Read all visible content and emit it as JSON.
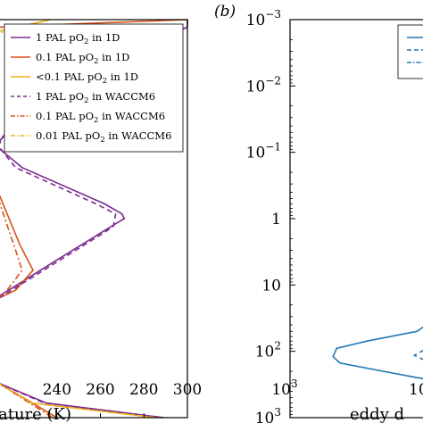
{
  "chart_data": [
    {
      "panel": "a",
      "type": "line",
      "panel_label": "",
      "xlabel": "ature (K)",
      "ylabel": "",
      "xticks": [
        240,
        260,
        280,
        300
      ],
      "xlim": [
        213,
        300
      ],
      "ylim": [
        0.001,
        1000
      ],
      "yscale": "log",
      "yinverted": true,
      "legend_position": "top-right",
      "series": [
        {
          "name": "1 PAL pO₂ in 1D",
          "color": "#7b2a8f",
          "dash": "solid",
          "x": [
            300,
            300,
            264,
            224,
            212,
            224,
            262,
            270,
            271,
            266,
            241,
            213,
            213,
            235,
            289
          ],
          "y": [
            0.001,
            0.0013,
            0.004,
            0.024,
            0.08,
            0.17,
            0.6,
            0.85,
            1,
            1.25,
            4,
            15,
            300,
            600,
            1000
          ]
        },
        {
          "name": "0.1 PAL pO₂ in 1D",
          "color": "#d95319",
          "dash": "solid",
          "x": [
            300,
            236,
            213,
            213,
            223,
            229,
            221,
            213,
            213,
            240
          ],
          "y": [
            0.001,
            0.0012,
            0.0013,
            0.4,
            2.5,
            6,
            12,
            16,
            300,
            1000
          ]
        },
        {
          "name": "<0.1 PAL pO₂ in 1D",
          "color": "#edb120",
          "dash": "solid",
          "x": [
            237,
            213,
            213,
            228,
            286
          ],
          "y": [
            0.001,
            0.0015,
            300,
            600,
            1000
          ]
        },
        {
          "name": "1 PAL pO₂ in WACCM6",
          "color": "#7b2a8f",
          "dash": "dashed",
          "x": [
            300,
            300,
            262,
            222,
            213,
            221,
            258,
            267,
            266,
            262,
            240,
            213,
            213,
            234,
            289
          ],
          "y": [
            0.001,
            0.0013,
            0.004,
            0.024,
            0.08,
            0.17,
            0.6,
            0.85,
            1.3,
            1.6,
            4.5,
            16,
            300,
            600,
            1000
          ]
        },
        {
          "name": "0.1 PAL pO₂ in WACCM6",
          "color": "#d95319",
          "dash": "dashdot",
          "x": [
            213,
            221,
            224,
            218,
            213,
            213,
            238
          ],
          "y": [
            0.5,
            3,
            6,
            11,
            16,
            300,
            1000
          ]
        },
        {
          "name": "0.01 PAL pO₂ in WACCM6",
          "color": "#edb120",
          "dash": "dashdot",
          "x": [
            237,
            213,
            213,
            228,
            286
          ],
          "y": [
            0.001,
            0.0016,
            300,
            600,
            1000
          ]
        }
      ]
    },
    {
      "panel": "b",
      "type": "line",
      "panel_label": "(b)",
      "xlabel": "eddy d",
      "ylabel": "",
      "xscale": "log",
      "yscale": "log",
      "yinverted": true,
      "xlim": [
        1000,
        100000
      ],
      "ylim": [
        0.001,
        1000
      ],
      "xtick_labels": [
        "10",
        "3",
        "10"
      ],
      "ytick_labels": [
        {
          "base": "10",
          "exp": "−3"
        },
        {
          "base": "10",
          "exp": "−2"
        },
        {
          "base": "10",
          "exp": "−1"
        },
        {
          "base": "1",
          "exp": ""
        },
        {
          "base": "10",
          "exp": ""
        },
        {
          "base": "10",
          "exp": "2"
        },
        {
          "base": "10",
          "exp": "3"
        }
      ],
      "legend_position": "top-right",
      "series": [
        {
          "color": "#1f77b4",
          "dash": "solid",
          "x": [
            100000,
            60000,
            12000,
            4500,
            4000,
            5000,
            20000,
            60000,
            100000
          ],
          "y": [
            35,
            50,
            70,
            90,
            120,
            150,
            200,
            250,
            270
          ]
        },
        {
          "color": "#1f77b4",
          "dash": "dashed",
          "x": [
            100000,
            70000,
            55000,
            70000,
            100000
          ],
          "y": [
            80,
            100,
            115,
            130,
            150
          ]
        }
      ]
    }
  ],
  "legend": {
    "entries": [
      {
        "main": "1 PAL pO",
        "sub": "2",
        "rest": " in 1D"
      },
      {
        "main": "0.1 PAL pO",
        "sub": "2",
        "rest": " in 1D"
      },
      {
        "main": "<0.1 PAL pO",
        "sub": "2",
        "rest": " in 1D"
      },
      {
        "main": "1 PAL pO",
        "sub": "2",
        "rest": " in WACCM6"
      },
      {
        "main": "0.1 PAL pO",
        "sub": "2",
        "rest": " in WACCM6"
      },
      {
        "main": "0.01 PAL pO",
        "sub": "2",
        "rest": " in WACCM6"
      }
    ]
  }
}
